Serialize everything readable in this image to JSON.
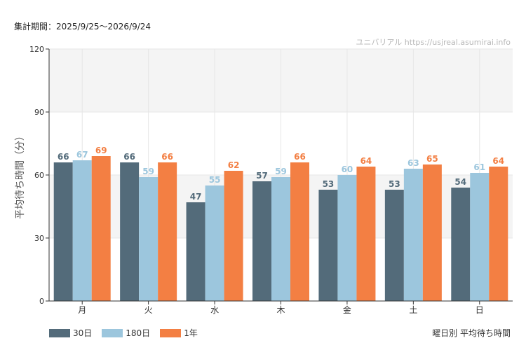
{
  "header": {
    "period": "集計期間：2025/9/25〜2026/9/24",
    "watermark": "ユニバリアル  https://usjreal.asumirai.info"
  },
  "caption": "曜日別 平均待ち時間",
  "colors": {
    "series_30": "#536b7a",
    "series_180": "#9cc6dd",
    "series_1y": "#f37f43",
    "band_light": "#f4f4f4",
    "grid": "#e6e6e6"
  },
  "chart_data": {
    "type": "bar",
    "ylabel": "平均待ち時間（分）",
    "xlabel": "",
    "ylim": [
      0,
      120
    ],
    "yticks": [
      0,
      30,
      60,
      90,
      120
    ],
    "categories": [
      "月",
      "火",
      "水",
      "木",
      "金",
      "土",
      "日"
    ],
    "series": [
      {
        "name": "30日",
        "color": "#536b7a",
        "values": [
          66,
          66,
          47,
          57,
          53,
          53,
          54
        ]
      },
      {
        "name": "180日",
        "color": "#9cc6dd",
        "values": [
          67,
          59,
          55,
          59,
          60,
          63,
          61
        ]
      },
      {
        "name": "1年",
        "color": "#f37f43",
        "values": [
          69,
          66,
          62,
          66,
          64,
          65,
          64
        ]
      }
    ],
    "grid": true,
    "legend": "bottom-left",
    "data_labels": true
  }
}
